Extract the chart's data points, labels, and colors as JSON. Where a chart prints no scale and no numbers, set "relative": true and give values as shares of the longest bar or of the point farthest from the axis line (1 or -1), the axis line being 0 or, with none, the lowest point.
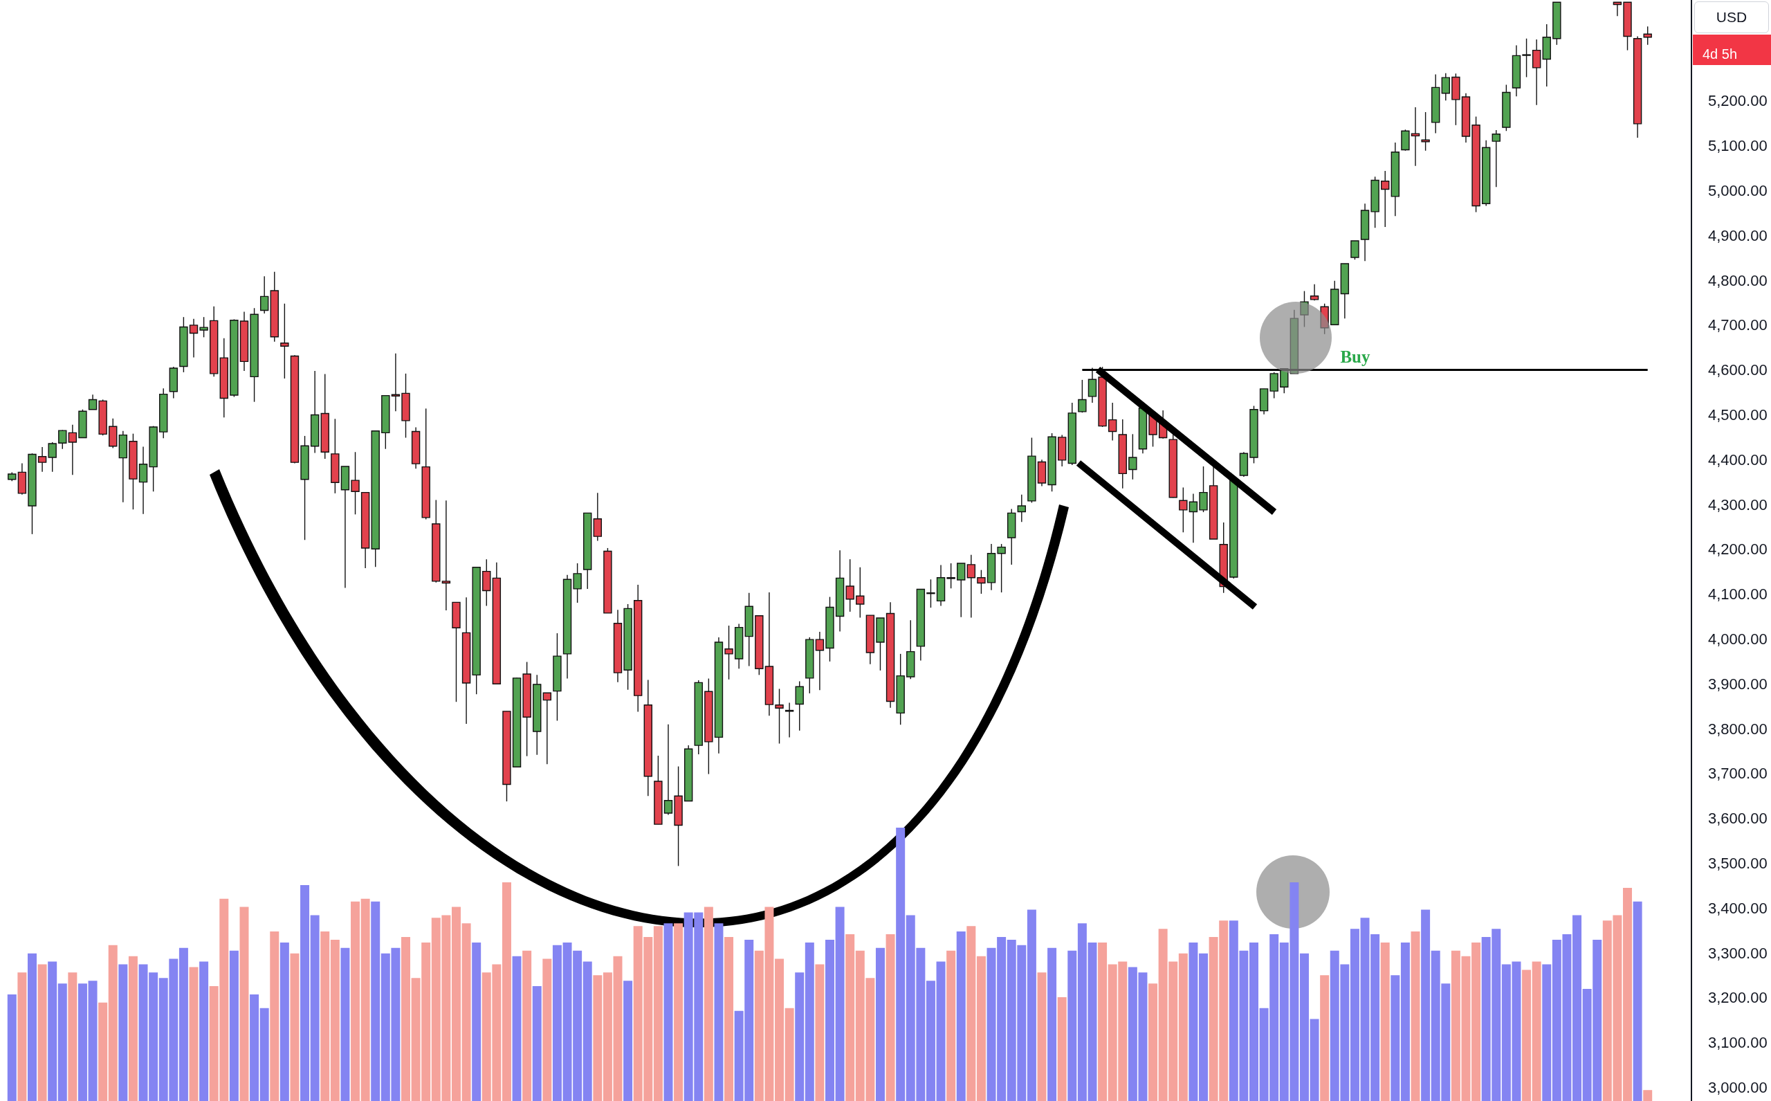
{
  "chart_data": [
    {
      "type": "candlestick",
      "categories": [
        null,
        null,
        null,
        null,
        null,
        null,
        null,
        null,
        null,
        null,
        null,
        null,
        null,
        null,
        null,
        null,
        null,
        null,
        null,
        null,
        null,
        null,
        null,
        null,
        null,
        null,
        null,
        null,
        null,
        null,
        null,
        null,
        null,
        null,
        null,
        null,
        null,
        null,
        null,
        null,
        null,
        null,
        null,
        null,
        null,
        null,
        null,
        null,
        null,
        null,
        null,
        null,
        null,
        null,
        null,
        null,
        null,
        null,
        null,
        null,
        null,
        null,
        null,
        null,
        null,
        null,
        null,
        null,
        null,
        null,
        null,
        null,
        null,
        null,
        null,
        null,
        null,
        null,
        null,
        null,
        null,
        null,
        null,
        null,
        null,
        null,
        null,
        null,
        null,
        null,
        null,
        null,
        null,
        null,
        null,
        null,
        null,
        null,
        null,
        null,
        null,
        null,
        null,
        null,
        null,
        null,
        null,
        null,
        null,
        null,
        null,
        null,
        null,
        null,
        null,
        null,
        null,
        null,
        null,
        null,
        null,
        null,
        null,
        null,
        null,
        null,
        null,
        null,
        null,
        null,
        null,
        null,
        null,
        null,
        null,
        null,
        null,
        null,
        null,
        null,
        null,
        null,
        null,
        null,
        null,
        null,
        null,
        null,
        null,
        null,
        null,
        null,
        null,
        null,
        null,
        null,
        null,
        null,
        null,
        null,
        null,
        null,
        null
      ],
      "ohlc": [
        [
          4356,
          4372,
          4352,
          4368
        ],
        [
          4372,
          4392,
          4322,
          4325
        ],
        [
          4297,
          4414,
          4234,
          4412
        ],
        [
          4407,
          4428,
          4373,
          4394
        ],
        [
          4405,
          4439,
          4373,
          4436
        ],
        [
          4437,
          4466,
          4424,
          4465
        ],
        [
          4460,
          4478,
          4366,
          4439
        ],
        [
          4449,
          4512,
          4449,
          4508
        ],
        [
          4512,
          4545,
          4512,
          4534
        ],
        [
          4531,
          4534,
          4454,
          4457
        ],
        [
          4474,
          4492,
          4426,
          4430
        ],
        [
          4404,
          4464,
          4305,
          4455
        ],
        [
          4441,
          4458,
          4289,
          4357
        ],
        [
          4350,
          4429,
          4279,
          4390
        ],
        [
          4384,
          4475,
          4329,
          4473
        ],
        [
          4462,
          4559,
          4448,
          4546
        ],
        [
          4552,
          4607,
          4537,
          4604
        ],
        [
          4608,
          4718,
          4595,
          4696
        ],
        [
          4700,
          4714,
          4628,
          4682
        ],
        [
          4689,
          4718,
          4673,
          4695
        ],
        [
          4710,
          4742,
          4585,
          4592
        ],
        [
          4627,
          4671,
          4494,
          4537
        ],
        [
          4544,
          4713,
          4540,
          4711
        ],
        [
          4709,
          4730,
          4598,
          4619
        ],
        [
          4585,
          4738,
          4529,
          4724
        ],
        [
          4733,
          4809,
          4726,
          4764
        ],
        [
          4777,
          4819,
          4663,
          4674
        ],
        [
          4660,
          4748,
          4581,
          4653
        ],
        [
          4631,
          4633,
          4392,
          4394
        ],
        [
          4356,
          4453,
          4221,
          4431
        ],
        [
          4430,
          4598,
          4415,
          4500
        ],
        [
          4503,
          4591,
          4402,
          4417
        ],
        [
          4413,
          4491,
          4325,
          4349
        ],
        [
          4333,
          4385,
          4114,
          4385
        ],
        [
          4354,
          4417,
          4278,
          4329
        ],
        [
          4327,
          4327,
          4158,
          4203
        ],
        [
          4201,
          4464,
          4161,
          4464
        ],
        [
          4460,
          4543,
          4424,
          4543
        ],
        [
          4545,
          4637,
          4508,
          4542
        ],
        [
          4548,
          4592,
          4449,
          4487
        ],
        [
          4463,
          4472,
          4380,
          4391
        ],
        [
          4384,
          4514,
          4267,
          4271
        ],
        [
          4257,
          4310,
          4126,
          4129
        ],
        [
          4129,
          4309,
          4064,
          4125
        ],
        [
          4082,
          4082,
          3860,
          4025
        ],
        [
          4014,
          4093,
          3811,
          3902
        ],
        [
          3920,
          4160,
          3877,
          4160
        ],
        [
          4151,
          4178,
          4074,
          4108
        ],
        [
          4136,
          4171,
          3900,
          3900
        ],
        [
          3839,
          3839,
          3638,
          3676
        ],
        [
          3715,
          3914,
          3715,
          3913
        ],
        [
          3922,
          3949,
          3739,
          3826
        ],
        [
          3794,
          3920,
          3742,
          3899
        ],
        [
          3880,
          3880,
          3721,
          3864
        ],
        [
          3884,
          4013,
          3818,
          3962
        ],
        [
          3967,
          4143,
          3912,
          4133
        ],
        [
          4112,
          4169,
          4081,
          4146
        ],
        [
          4155,
          4281,
          4112,
          4281
        ],
        [
          4268,
          4326,
          4219,
          4229
        ],
        [
          4196,
          4203,
          4058,
          4058
        ],
        [
          4035,
          4065,
          3904,
          3925
        ],
        [
          3931,
          4078,
          3887,
          4068
        ],
        [
          4086,
          4121,
          3838,
          3874
        ],
        [
          3853,
          3909,
          3650,
          3694
        ],
        [
          3683,
          3740,
          3587,
          3587
        ],
        [
          3612,
          3810,
          3608,
          3640
        ],
        [
          3650,
          3716,
          3494,
          3585
        ],
        [
          3639,
          3763,
          3639,
          3755
        ],
        [
          3763,
          3908,
          3743,
          3903
        ],
        [
          3883,
          3912,
          3699,
          3771
        ],
        [
          3781,
          4004,
          3745,
          3993
        ],
        [
          3978,
          4030,
          3910,
          3967
        ],
        [
          3956,
          4034,
          3934,
          4026
        ],
        [
          4006,
          4103,
          3940,
          4073
        ],
        [
          4052,
          4052,
          3920,
          3934
        ],
        [
          3939,
          4104,
          3829,
          3854
        ],
        [
          3853,
          3889,
          3767,
          3846
        ],
        [
          3839,
          3858,
          3781,
          3841
        ],
        [
          3855,
          3906,
          3796,
          3894
        ],
        [
          3913,
          4004,
          3879,
          3999
        ],
        [
          3999,
          4016,
          3886,
          3975
        ],
        [
          3980,
          4094,
          3950,
          4071
        ],
        [
          4051,
          4198,
          4017,
          4136
        ],
        [
          4118,
          4178,
          4061,
          4089
        ],
        [
          4096,
          4160,
          4048,
          4078
        ],
        [
          4053,
          4053,
          3944,
          3970
        ],
        [
          3993,
          4047,
          3930,
          4047
        ],
        [
          4057,
          4082,
          3847,
          3861
        ],
        [
          3835,
          3967,
          3809,
          3918
        ],
        [
          3916,
          4042,
          3911,
          3972
        ],
        [
          3984,
          4111,
          3952,
          4111
        ],
        [
          4102,
          4133,
          4070,
          4103
        ],
        [
          4085,
          4165,
          4074,
          4137
        ],
        [
          4135,
          4169,
          4113,
          4137
        ],
        [
          4132,
          4169,
          4049,
          4169
        ],
        [
          4166,
          4188,
          4048,
          4137
        ],
        [
          4137,
          4154,
          4101,
          4125
        ],
        [
          4126,
          4212,
          4109,
          4191
        ],
        [
          4191,
          4212,
          4104,
          4205
        ],
        [
          4226,
          4290,
          4166,
          4281
        ],
        [
          4284,
          4322,
          4261,
          4297
        ],
        [
          4308,
          4449,
          4304,
          4408
        ],
        [
          4395,
          4400,
          4341,
          4348
        ],
        [
          4344,
          4459,
          4329,
          4451
        ],
        [
          4450,
          4455,
          4385,
          4399
        ],
        [
          4392,
          4527,
          4388,
          4504
        ],
        [
          4507,
          4578,
          4505,
          4534
        ],
        [
          4541,
          4605,
          4527,
          4579
        ],
        [
          4584,
          4607,
          4473,
          4475
        ],
        [
          4489,
          4527,
          4443,
          4463
        ],
        [
          4456,
          4490,
          4336,
          4369
        ],
        [
          4378,
          4457,
          4356,
          4405
        ],
        [
          4424,
          4517,
          4414,
          4515
        ],
        [
          4503,
          4510,
          4429,
          4456
        ],
        [
          4481,
          4510,
          4447,
          4449
        ],
        [
          4445,
          4460,
          4315,
          4316
        ],
        [
          4309,
          4338,
          4238,
          4288
        ],
        [
          4284,
          4324,
          4215,
          4306
        ],
        [
          4288,
          4385,
          4283,
          4327
        ],
        [
          4342,
          4388,
          4223,
          4223
        ],
        [
          4211,
          4260,
          4103,
          4117
        ],
        [
          4138,
          4362,
          4135,
          4355
        ],
        [
          4365,
          4417,
          4362,
          4414
        ],
        [
          4405,
          4520,
          4392,
          4512
        ],
        [
          4509,
          4558,
          4501,
          4558
        ],
        [
          4553,
          4595,
          4537,
          4592
        ],
        [
          4562,
          4603,
          4548,
          4603
        ],
        [
          4592,
          4734,
          4592,
          4715
        ],
        [
          4723,
          4776,
          4696,
          4752
        ],
        [
          4765,
          4791,
          4755,
          4757
        ],
        [
          4741,
          4748,
          4680,
          4694
        ],
        [
          4701,
          4799,
          4701,
          4780
        ],
        [
          4770,
          4837,
          4715,
          4837
        ],
        [
          4851,
          4888,
          4846,
          4888
        ],
        [
          4891,
          4971,
          4843,
          4956
        ],
        [
          4953,
          5031,
          4917,
          5023
        ],
        [
          5021,
          5044,
          4919,
          5003
        ],
        [
          4987,
          5107,
          4943,
          5086
        ],
        [
          5091,
          5136,
          5089,
          5133
        ],
        [
          5127,
          5186,
          5055,
          5122
        ],
        [
          5113,
          5175,
          5089,
          5109
        ],
        [
          5152,
          5259,
          5128,
          5230
        ],
        [
          5217,
          5262,
          5201,
          5252
        ],
        [
          5253,
          5261,
          5146,
          5203
        ],
        [
          5209,
          5217,
          5107,
          5121
        ],
        [
          5146,
          5165,
          4952,
          4966
        ],
        [
          4971,
          5112,
          4966,
          5096
        ],
        [
          5110,
          5135,
          5008,
          5126
        ],
        [
          5141,
          5236,
          5133,
          5219
        ],
        [
          5229,
          5324,
          5210,
          5301
        ],
        [
          5302,
          5339,
          5253,
          5303
        ],
        [
          5313,
          5337,
          5191,
          5274
        ],
        [
          5293,
          5371,
          5232,
          5342
        ],
        [
          5339,
          5420,
          5325,
          5420
        ],
        null,
        null,
        null,
        null,
        null,
        [
          5420,
          5420,
          5389,
          5415
        ],
        [
          5420,
          5420,
          5313,
          5344
        ],
        [
          5339,
          5344,
          5118,
          5149
        ],
        [
          5349,
          5366,
          5325,
          5342
        ]
      ],
      "colors": [
        "#52a352",
        "#e2424d",
        "#52a352",
        "#e2424d",
        "#52a352",
        "#52a352",
        "#e2424d",
        "#52a352",
        "#52a352",
        "#e2424d",
        "#e2424d",
        "#52a352",
        "#e2424d",
        "#52a352",
        "#52a352",
        "#52a352",
        "#52a352",
        "#52a352",
        "#e2424d",
        "#52a352",
        "#e2424d",
        "#e2424d",
        "#52a352",
        "#e2424d",
        "#52a352",
        "#52a352",
        "#e2424d",
        "#e2424d",
        "#e2424d",
        "#52a352",
        "#52a352",
        "#e2424d",
        "#e2424d",
        "#52a352",
        "#e2424d",
        "#e2424d",
        "#52a352",
        "#52a352",
        "#e2424d",
        "#e2424d",
        "#e2424d",
        "#e2424d",
        "#e2424d",
        "#e2424d",
        "#e2424d",
        "#e2424d",
        "#52a352",
        "#e2424d",
        "#e2424d",
        "#e2424d",
        "#52a352",
        "#e2424d",
        "#52a352",
        "#e2424d",
        "#52a352",
        "#52a352",
        "#52a352",
        "#52a352",
        "#e2424d",
        "#e2424d",
        "#e2424d",
        "#52a352",
        "#e2424d",
        "#e2424d",
        "#e2424d",
        "#52a352",
        "#e2424d",
        "#52a352",
        "#52a352",
        "#e2424d",
        "#52a352",
        "#e2424d",
        "#52a352",
        "#52a352",
        "#e2424d",
        "#e2424d",
        "#e2424d",
        "#52a352",
        "#52a352",
        "#52a352",
        "#e2424d",
        "#52a352",
        "#52a352",
        "#e2424d",
        "#e2424d",
        "#e2424d",
        "#52a352",
        "#e2424d",
        "#52a352",
        "#52a352",
        "#52a352",
        "#52a352",
        "#52a352",
        "#52a352",
        "#52a352",
        "#e2424d",
        "#e2424d",
        "#52a352",
        "#52a352",
        "#52a352",
        "#52a352",
        "#52a352",
        "#e2424d",
        "#52a352",
        "#e2424d",
        "#52a352",
        "#52a352",
        "#52a352",
        "#e2424d",
        "#e2424d",
        "#e2424d",
        "#52a352",
        "#52a352",
        "#e2424d",
        "#e2424d",
        "#e2424d",
        "#e2424d",
        "#52a352",
        "#52a352",
        "#e2424d",
        "#e2424d",
        "#52a352",
        "#52a352",
        "#52a352",
        "#52a352",
        "#52a352",
        "#52a352",
        "#52a352",
        "#52a352",
        "#e2424d",
        "#e2424d",
        "#52a352",
        "#52a352",
        "#52a352",
        "#52a352",
        "#52a352",
        "#e2424d",
        "#52a352",
        "#52a352",
        "#e2424d",
        "#e2424d",
        "#52a352",
        "#52a352",
        "#e2424d",
        "#e2424d",
        "#e2424d",
        "#52a352",
        "#52a352",
        "#52a352",
        "#52a352",
        "#52a352",
        "#e2424d",
        "#52a352",
        "#52a352",
        null,
        null,
        null,
        null,
        null,
        "#e2424d",
        "#e2424d",
        "#e2424d",
        "#e2424d"
      ],
      "ylim": [
        2970,
        5425
      ],
      "yticks": [
        {
          "value": 3000,
          "label": "3,000.00"
        },
        {
          "value": 3100,
          "label": "3,100.00"
        },
        {
          "value": 3200,
          "label": "3,200.00"
        },
        {
          "value": 3300,
          "label": "3,300.00"
        },
        {
          "value": 3400,
          "label": "3,400.00"
        },
        {
          "value": 3500,
          "label": "3,500.00"
        },
        {
          "value": 3600,
          "label": "3,600.00"
        },
        {
          "value": 3700,
          "label": "3,700.00"
        },
        {
          "value": 3800,
          "label": "3,800.00"
        },
        {
          "value": 3900,
          "label": "3,900.00"
        },
        {
          "value": 4000,
          "label": "4,000.00"
        },
        {
          "value": 4100,
          "label": "4,100.00"
        },
        {
          "value": 4200,
          "label": "4,200.00"
        },
        {
          "value": 4300,
          "label": "4,300.00"
        },
        {
          "value": 4400,
          "label": "4,400.00"
        },
        {
          "value": 4500,
          "label": "4,500.00"
        },
        {
          "value": 4600,
          "label": "4,600.00"
        },
        {
          "value": 4700,
          "label": "4,700.00"
        },
        {
          "value": 4800,
          "label": "4,800.00"
        },
        {
          "value": 4900,
          "label": "4,900.00"
        },
        {
          "value": 5000,
          "label": "5,000.00"
        },
        {
          "value": 5100,
          "label": "5,100.00"
        },
        {
          "value": 5200,
          "label": "5,200.00"
        }
      ],
      "tick_labels": "y",
      "ref_lines": [
        {
          "axis": "y",
          "value": 4600,
          "label": "Buy",
          "color": "#000000",
          "line_style": "solid"
        }
      ],
      "annotations": [
        "USD",
        "4d 5h"
      ]
    },
    {
      "type": "bar",
      "relative": true,
      "tick_labels": false,
      "categories": [
        null,
        null,
        null,
        null,
        null,
        null,
        null,
        null,
        null,
        null,
        null,
        null,
        null,
        null,
        null,
        null,
        null,
        null,
        null,
        null,
        null,
        null,
        null,
        null,
        null,
        null,
        null,
        null,
        null,
        null,
        null,
        null,
        null,
        null,
        null,
        null,
        null,
        null,
        null,
        null,
        null,
        null,
        null,
        null,
        null,
        null,
        null,
        null,
        null,
        null,
        null,
        null,
        null,
        null,
        null,
        null,
        null,
        null,
        null,
        null,
        null,
        null,
        null,
        null,
        null,
        null,
        null,
        null,
        null,
        null,
        null,
        null,
        null,
        null,
        null,
        null,
        null,
        null,
        null,
        null,
        null,
        null,
        null,
        null,
        null,
        null,
        null,
        null,
        null,
        null,
        null,
        null,
        null,
        null,
        null,
        null,
        null,
        null,
        null,
        null,
        null,
        null,
        null,
        null,
        null,
        null,
        null,
        null,
        null,
        null,
        null,
        null,
        null,
        null,
        null,
        null,
        null,
        null,
        null,
        null,
        null,
        null,
        null,
        null,
        null,
        null,
        null,
        null,
        null,
        null,
        null,
        null,
        null,
        null,
        null,
        null,
        null,
        null,
        null,
        null,
        null,
        null,
        null,
        null,
        null,
        null,
        null,
        null,
        null,
        null,
        null,
        null,
        null,
        null,
        null,
        null,
        null,
        null,
        null,
        null,
        null,
        null,
        null
      ],
      "values": [
        0.39,
        0.47,
        0.54,
        0.5,
        0.51,
        0.43,
        0.47,
        0.43,
        0.44,
        0.36,
        0.57,
        0.5,
        0.53,
        0.5,
        0.47,
        0.45,
        0.52,
        0.56,
        0.49,
        0.51,
        0.42,
        0.74,
        0.55,
        0.71,
        0.39,
        0.34,
        0.62,
        0.58,
        0.54,
        0.79,
        0.68,
        0.62,
        0.59,
        0.56,
        0.73,
        0.74,
        0.73,
        0.54,
        0.56,
        0.6,
        0.45,
        0.58,
        0.67,
        0.68,
        0.71,
        0.65,
        0.58,
        0.47,
        0.5,
        0.8,
        0.53,
        0.55,
        0.42,
        0.52,
        0.57,
        0.58,
        0.55,
        0.51,
        0.46,
        0.47,
        0.53,
        0.44,
        0.64,
        0.6,
        0.64,
        0.65,
        0.65,
        0.69,
        0.69,
        0.71,
        0.65,
        0.6,
        0.33,
        0.59,
        0.55,
        0.71,
        0.52,
        0.34,
        0.47,
        0.58,
        0.5,
        0.59,
        0.71,
        0.61,
        0.55,
        0.45,
        0.56,
        0.61,
        1,
        0.68,
        0.56,
        0.44,
        0.51,
        0.55,
        0.62,
        0.64,
        0.53,
        0.56,
        0.6,
        0.59,
        0.57,
        0.7,
        0.47,
        0.56,
        0.38,
        0.55,
        0.65,
        0.58,
        0.58,
        0.5,
        0.51,
        0.49,
        0.47,
        0.43,
        0.63,
        0.51,
        0.54,
        0.58,
        0.54,
        0.6,
        0.66,
        0.66,
        0.55,
        0.58,
        0.34,
        0.61,
        0.58,
        0.8,
        0.54,
        0.3,
        0.46,
        0.55,
        0.5,
        0.63,
        0.67,
        0.61,
        0.58,
        0.46,
        0.58,
        0.62,
        0.7,
        0.55,
        0.43,
        0.55,
        0.53,
        0.58,
        0.6,
        0.63,
        0.5,
        0.51,
        0.48,
        0.51,
        0.5,
        0.59,
        0.61,
        0.68,
        0.41,
        0.59,
        0.66,
        0.68,
        0.78,
        0.73,
        0.04
      ],
      "colors": [
        "#8484f2",
        "#f5a29b",
        "#8484f2",
        "#f5a29b",
        "#8484f2",
        "#8484f2",
        "#f5a29b",
        "#8484f2",
        "#8484f2",
        "#f5a29b",
        "#f5a29b",
        "#8484f2",
        "#f5a29b",
        "#8484f2",
        "#8484f2",
        "#8484f2",
        "#8484f2",
        "#8484f2",
        "#f5a29b",
        "#8484f2",
        "#f5a29b",
        "#f5a29b",
        "#8484f2",
        "#f5a29b",
        "#8484f2",
        "#8484f2",
        "#f5a29b",
        "#8484f2",
        "#f5a29b",
        "#8484f2",
        "#8484f2",
        "#f5a29b",
        "#f5a29b",
        "#8484f2",
        "#f5a29b",
        "#f5a29b",
        "#8484f2",
        "#8484f2",
        "#8484f2",
        "#f5a29b",
        "#f5a29b",
        "#f5a29b",
        "#f5a29b",
        "#f5a29b",
        "#f5a29b",
        "#f5a29b",
        "#8484f2",
        "#f5a29b",
        "#f5a29b",
        "#f5a29b",
        "#8484f2",
        "#f5a29b",
        "#8484f2",
        "#f5a29b",
        "#8484f2",
        "#8484f2",
        "#8484f2",
        "#8484f2",
        "#f5a29b",
        "#f5a29b",
        "#f5a29b",
        "#8484f2",
        "#f5a29b",
        "#f5a29b",
        "#f5a29b",
        "#8484f2",
        "#f5a29b",
        "#8484f2",
        "#8484f2",
        "#f5a29b",
        "#8484f2",
        "#f5a29b",
        "#8484f2",
        "#8484f2",
        "#f5a29b",
        "#f5a29b",
        "#f5a29b",
        "#f5a29b",
        "#8484f2",
        "#8484f2",
        "#f5a29b",
        "#8484f2",
        "#8484f2",
        "#f5a29b",
        "#f5a29b",
        "#f5a29b",
        "#8484f2",
        "#f5a29b",
        "#8484f2",
        "#8484f2",
        "#8484f2",
        "#8484f2",
        "#8484f2",
        "#f5a29b",
        "#8484f2",
        "#f5a29b",
        "#f5a29b",
        "#8484f2",
        "#8484f2",
        "#8484f2",
        "#8484f2",
        "#8484f2",
        "#f5a29b",
        "#8484f2",
        "#f5a29b",
        "#8484f2",
        "#8484f2",
        "#8484f2",
        "#f5a29b",
        "#f5a29b",
        "#f5a29b",
        "#8484f2",
        "#8484f2",
        "#f5a29b",
        "#f5a29b",
        "#f5a29b",
        "#f5a29b",
        "#8484f2",
        "#8484f2",
        "#f5a29b",
        "#f5a29b",
        "#8484f2",
        "#8484f2",
        "#8484f2",
        "#8484f2",
        "#8484f2",
        "#8484f2",
        "#8484f2",
        "#8484f2",
        "#8484f2",
        "#f5a29b",
        "#8484f2",
        "#8484f2",
        "#8484f2",
        "#8484f2",
        "#8484f2",
        "#f5a29b",
        "#8484f2",
        "#8484f2",
        "#f5a29b",
        "#8484f2",
        "#8484f2",
        "#8484f2",
        "#f5a29b",
        "#f5a29b",
        "#f5a29b",
        "#8484f2",
        "#8484f2",
        "#8484f2",
        "#8484f2",
        "#f5a29b",
        "#f5a29b",
        "#8484f2",
        "#8484f2",
        "#8484f2",
        "#8484f2",
        "#8484f2",
        "#8484f2",
        "#f5a29b",
        "#f5a29b",
        "#f5a29b",
        "#8484f2",
        "#f5a29b"
      ]
    }
  ]
}
